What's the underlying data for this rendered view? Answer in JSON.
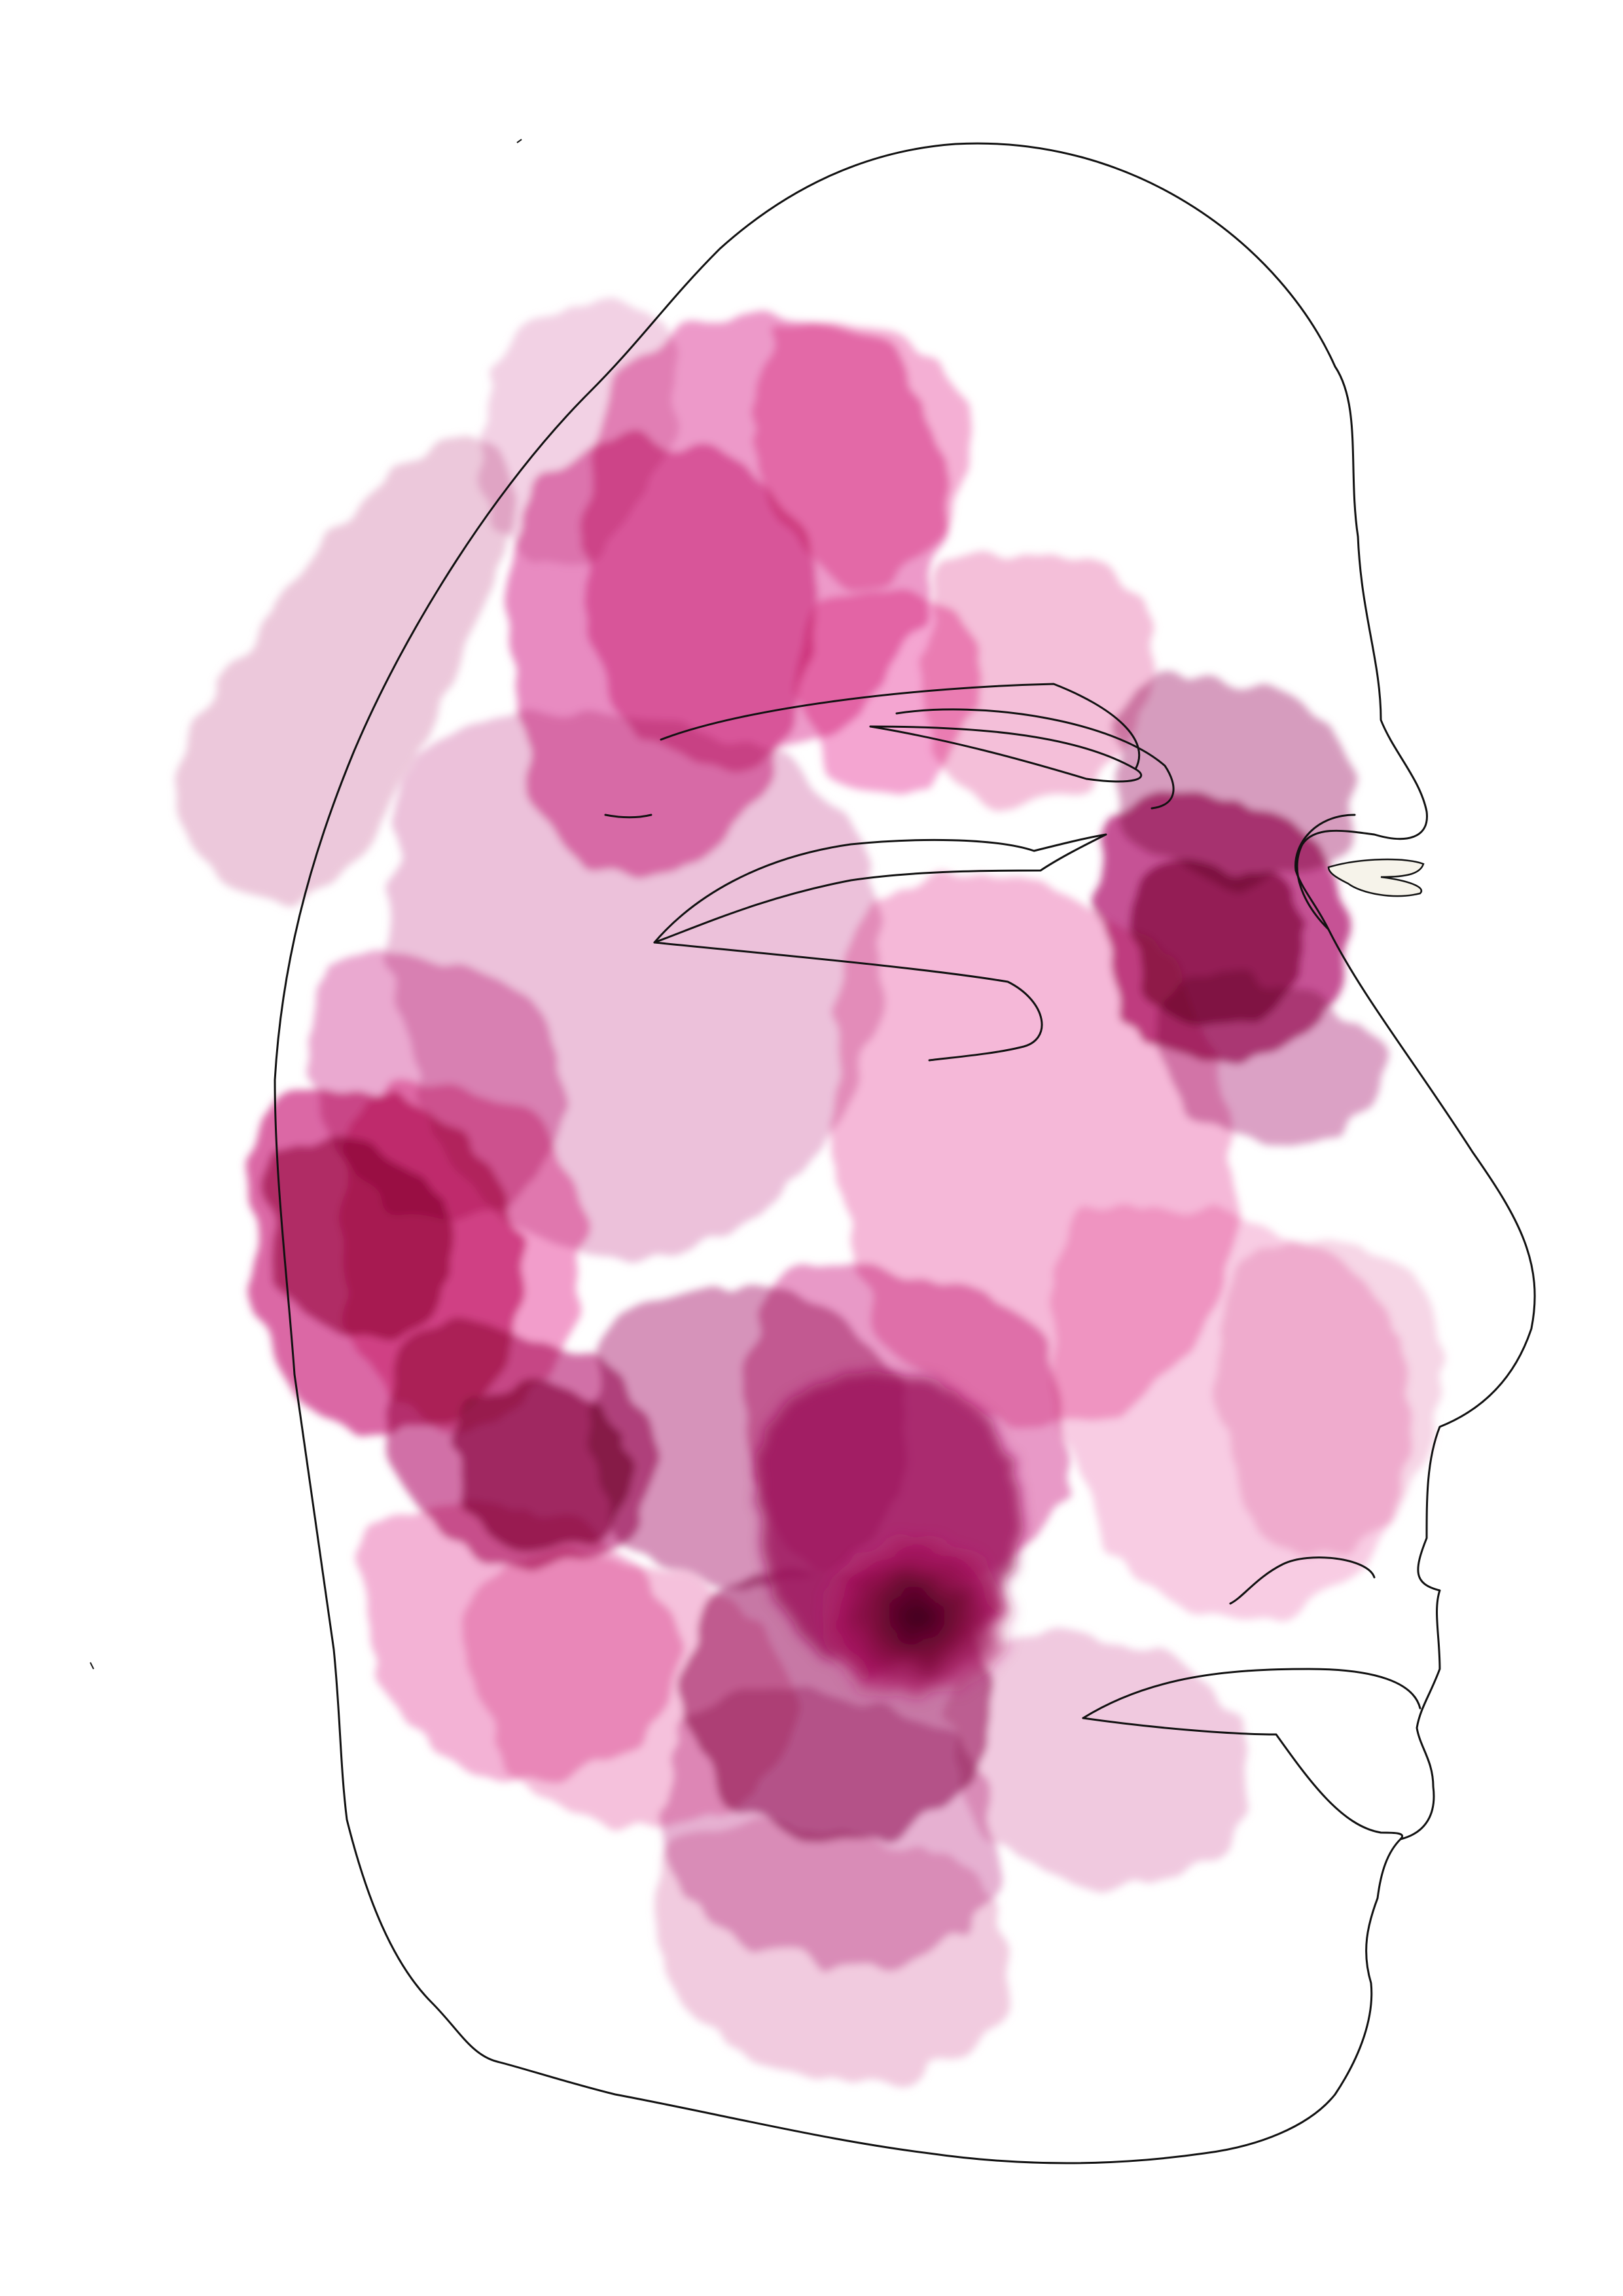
{
  "artwork": {
    "background": "#ffffff",
    "outline_color": "#111111",
    "palette": {
      "pale_pink": "#f0bfd9",
      "light_pink": "#ec9ac8",
      "pink": "#e473b1",
      "magenta": "#d23f8d",
      "mauve": "#bd5c95",
      "deep_magenta": "#a91a63",
      "dark_core": "#4f0025",
      "nostril_fill": "#f6f3ea"
    }
  }
}
